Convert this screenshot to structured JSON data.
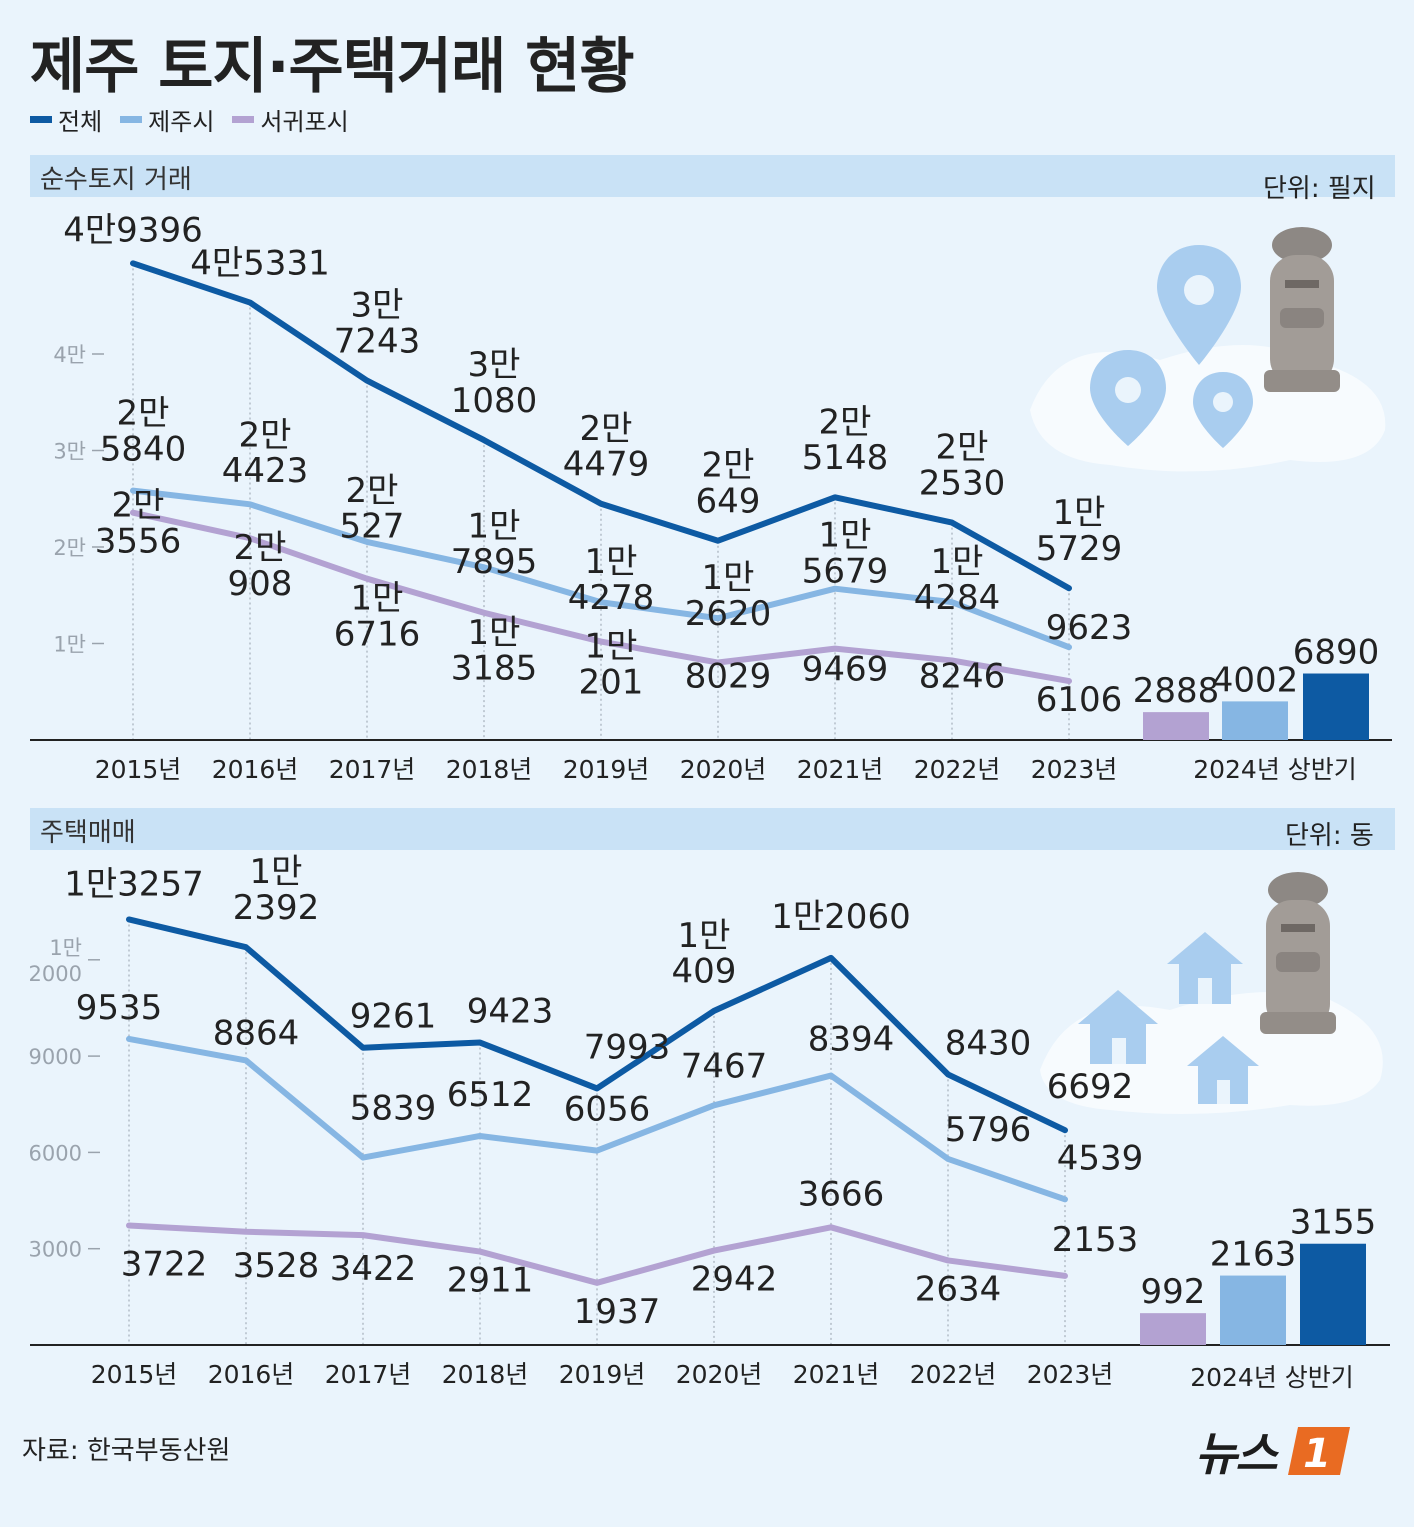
{
  "title": "제주 토지·주택거래 현황",
  "legend": [
    {
      "name": "전체",
      "color": "#0d5aa3"
    },
    {
      "name": "제주시",
      "color": "#86b6e3"
    },
    {
      "name": "서귀포시",
      "color": "#b3a2d2"
    }
  ],
  "source": "자료: 한국부동산원",
  "logo": {
    "text": "뉴스",
    "mark": "1"
  },
  "chart_data": [
    {
      "type": "line",
      "title": "순수토지 거래",
      "unit": "단위: 필지",
      "categories": [
        "2015년",
        "2016년",
        "2017년",
        "2018년",
        "2019년",
        "2020년",
        "2021년",
        "2022년",
        "2023년"
      ],
      "y_ticks": [
        "1만",
        "2만",
        "3만",
        "4만"
      ],
      "series": [
        {
          "name": "전체",
          "values": [
            49396,
            45331,
            37243,
            31080,
            24479,
            20649,
            25148,
            22530,
            15729
          ],
          "labels": [
            "4만9396",
            "4만5331",
            "3만\n7243",
            "3만\n1080",
            "2만\n4479",
            "2만\n649",
            "2만\n5148",
            "2만\n2530",
            "1만\n5729"
          ]
        },
        {
          "name": "제주시",
          "values": [
            25840,
            24423,
            20527,
            17895,
            14278,
            12620,
            15679,
            14284,
            9623
          ],
          "labels": [
            "2만\n5840",
            "2만\n4423",
            "2만\n527",
            "1만\n7895",
            "1만\n4278",
            "1만\n2620",
            "1만\n5679",
            "1만\n4284",
            "9623"
          ]
        },
        {
          "name": "서귀포시",
          "values": [
            23556,
            20908,
            16716,
            13185,
            10201,
            8029,
            9469,
            8246,
            6106
          ],
          "labels": [
            "2만\n3556",
            "2만\n908",
            "1만\n6716",
            "1만\n3185",
            "1만\n201",
            "8029",
            "9469",
            "8246",
            "6106"
          ]
        }
      ],
      "bar_category": "2024년 상반기",
      "bars": [
        {
          "name": "서귀포시",
          "value": 2888,
          "label": "2888"
        },
        {
          "name": "제주시",
          "value": 4002,
          "label": "4002"
        },
        {
          "name": "전체",
          "value": 6890,
          "label": "6890"
        }
      ],
      "ylim": [
        0,
        50000
      ],
      "icon": "location-pin-icons"
    },
    {
      "type": "line",
      "title": "주택매매",
      "unit": "단위: 동",
      "categories": [
        "2015년",
        "2016년",
        "2017년",
        "2018년",
        "2019년",
        "2020년",
        "2021년",
        "2022년",
        "2023년"
      ],
      "y_ticks": [
        "3000",
        "6000",
        "9000",
        "1만\n2000"
      ],
      "series": [
        {
          "name": "전체",
          "values": [
            13257,
            12392,
            9261,
            9423,
            7993,
            10409,
            12060,
            8430,
            6692
          ],
          "labels": [
            "1만3257",
            "1만\n2392",
            "9261",
            "9423",
            "7993",
            "1만\n409",
            "1만2060",
            "8430",
            "6692"
          ]
        },
        {
          "name": "제주시",
          "values": [
            9535,
            8864,
            5839,
            6512,
            6056,
            7467,
            8394,
            5796,
            4539
          ],
          "labels": [
            "9535",
            "8864",
            "5839",
            "6512",
            "6056",
            "7467",
            "8394",
            "5796",
            "4539"
          ]
        },
        {
          "name": "서귀포시",
          "values": [
            3722,
            3528,
            3422,
            2911,
            1937,
            2942,
            3666,
            2634,
            2153
          ],
          "labels": [
            "3722",
            "3528",
            "3422",
            "2911",
            "1937",
            "2942",
            "3666",
            "2634",
            "2153"
          ]
        }
      ],
      "bar_category": "2024년 상반기",
      "bars": [
        {
          "name": "서귀포시",
          "value": 992,
          "label": "992"
        },
        {
          "name": "제주시",
          "value": 2163,
          "label": "2163"
        },
        {
          "name": "전체",
          "value": 3155,
          "label": "3155"
        }
      ],
      "ylim": [
        0,
        13500
      ],
      "icon": "house-icons"
    }
  ]
}
